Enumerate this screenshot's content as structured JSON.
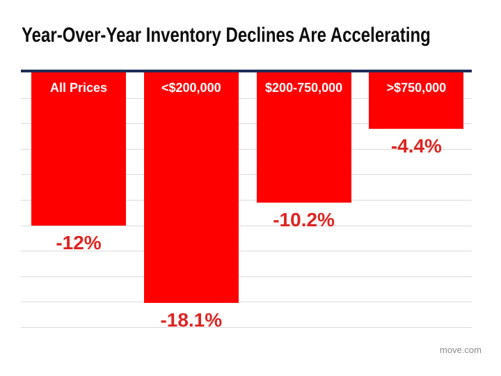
{
  "chart": {
    "title": "Year-Over-Year Inventory Declines Are Accelerating"
  },
  "chart_data": {
    "type": "bar",
    "orientation": "vertical-downward",
    "title": "Year-Over-Year Inventory Declines Are Accelerating",
    "categories": [
      "All Prices",
      "<$200,000",
      "$200-750,000",
      ">$750,000"
    ],
    "values": [
      -12,
      -18.1,
      -10.2,
      -4.4
    ],
    "value_labels": [
      "-12%",
      "-18.1%",
      "-10.2%",
      "-4.4%"
    ],
    "xlabel": "",
    "ylabel": "",
    "ylim": [
      -20,
      0
    ],
    "gridline_step": 2,
    "grid": true,
    "legend": false,
    "colors": {
      "bar": "#FF0000",
      "category_label": "#FFFFFF",
      "value_label": "#DD2420",
      "baseline": "#1F2D58",
      "gridline": "#D9D9D9",
      "title": "#0B0B0B",
      "attribution": "#8A8A8A"
    }
  },
  "attribution": "move.com"
}
